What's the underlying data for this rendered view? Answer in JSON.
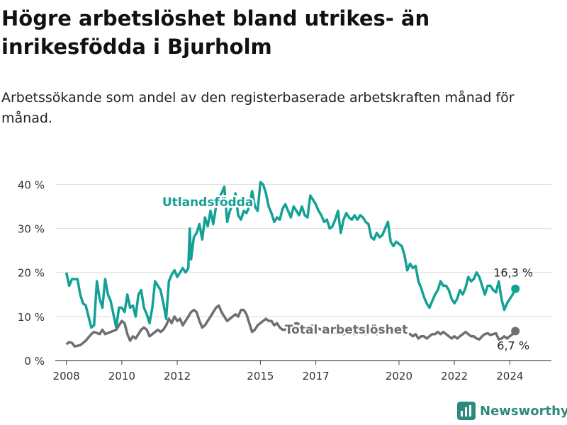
{
  "title": "Högre arbetslöshet bland utrikes- än inrikesfödda i Bjurholm",
  "subtitle": "Arbetssökande som andel av den registerbaserade arbetskraften månad för månad.",
  "brand": "Newsworthy",
  "chart_data": {
    "type": "line",
    "ylim": [
      0,
      42
    ],
    "y_ticks": [
      0,
      10,
      20,
      30,
      40
    ],
    "y_tick_labels": [
      "0 %",
      "10 %",
      "20 %",
      "30 %",
      "40 %"
    ],
    "xlim": [
      2007.6,
      2025.5
    ],
    "x_ticks": [
      2008,
      2010,
      2012,
      2015,
      2017,
      2020,
      2022,
      2024
    ],
    "x_tick_labels": [
      "2008",
      "2010",
      "2012",
      "2015",
      "2017",
      "2020",
      "2022",
      "2024"
    ],
    "grid": true,
    "series": [
      {
        "name": "Utlandsfödda",
        "color": "#13a196",
        "end_label": "16,3 %",
        "points": [
          [
            2008.0,
            20.0
          ],
          [
            2008.1,
            17.0
          ],
          [
            2008.2,
            18.5
          ],
          [
            2008.4,
            18.5
          ],
          [
            2008.5,
            15.0
          ],
          [
            2008.6,
            13.0
          ],
          [
            2008.7,
            12.5
          ],
          [
            2008.8,
            10.0
          ],
          [
            2008.9,
            7.5
          ],
          [
            2009.0,
            8.0
          ],
          [
            2009.1,
            18.0
          ],
          [
            2009.2,
            14.0
          ],
          [
            2009.3,
            12.0
          ],
          [
            2009.4,
            18.5
          ],
          [
            2009.5,
            15.0
          ],
          [
            2009.6,
            13.5
          ],
          [
            2009.7,
            10.5
          ],
          [
            2009.8,
            7.5
          ],
          [
            2009.9,
            12.0
          ],
          [
            2010.0,
            12.0
          ],
          [
            2010.1,
            11.0
          ],
          [
            2010.2,
            15.0
          ],
          [
            2010.3,
            12.0
          ],
          [
            2010.4,
            12.5
          ],
          [
            2010.5,
            10.0
          ],
          [
            2010.6,
            15.0
          ],
          [
            2010.7,
            16.0
          ],
          [
            2010.8,
            12.0
          ],
          [
            2010.9,
            10.5
          ],
          [
            2011.0,
            8.5
          ],
          [
            2011.1,
            12.0
          ],
          [
            2011.2,
            18.0
          ],
          [
            2011.3,
            17.0
          ],
          [
            2011.4,
            16.0
          ],
          [
            2011.5,
            13.0
          ],
          [
            2011.6,
            9.5
          ],
          [
            2011.7,
            18.0
          ],
          [
            2011.8,
            19.5
          ],
          [
            2011.9,
            20.5
          ],
          [
            2012.0,
            19.0
          ],
          [
            2012.1,
            20.0
          ],
          [
            2012.2,
            21.0
          ],
          [
            2012.3,
            20.0
          ],
          [
            2012.4,
            21.0
          ],
          [
            2012.45,
            30.0
          ],
          [
            2012.5,
            23.0
          ],
          [
            2012.6,
            28.0
          ],
          [
            2012.7,
            29.0
          ],
          [
            2012.8,
            31.0
          ],
          [
            2012.9,
            27.5
          ],
          [
            2013.0,
            32.5
          ],
          [
            2013.1,
            30.5
          ],
          [
            2013.2,
            34.0
          ],
          [
            2013.3,
            31.0
          ],
          [
            2013.4,
            35.0
          ],
          [
            2013.5,
            37.0
          ],
          [
            2013.6,
            38.0
          ],
          [
            2013.7,
            39.5
          ],
          [
            2013.8,
            31.5
          ],
          [
            2013.9,
            34.0
          ],
          [
            2014.0,
            35.5
          ],
          [
            2014.1,
            38.0
          ],
          [
            2014.2,
            33.0
          ],
          [
            2014.3,
            32.0
          ],
          [
            2014.4,
            34.0
          ],
          [
            2014.5,
            33.5
          ],
          [
            2014.6,
            35.0
          ],
          [
            2014.7,
            38.5
          ],
          [
            2014.8,
            35.0
          ],
          [
            2014.9,
            34.0
          ],
          [
            2015.0,
            40.5
          ],
          [
            2015.1,
            40.0
          ],
          [
            2015.2,
            38.0
          ],
          [
            2015.3,
            35.0
          ],
          [
            2015.4,
            33.5
          ],
          [
            2015.5,
            31.5
          ],
          [
            2015.6,
            32.5
          ],
          [
            2015.7,
            32.0
          ],
          [
            2015.8,
            34.5
          ],
          [
            2015.9,
            35.5
          ],
          [
            2016.0,
            34.0
          ],
          [
            2016.1,
            32.5
          ],
          [
            2016.2,
            35.0
          ],
          [
            2016.3,
            34.0
          ],
          [
            2016.4,
            33.0
          ],
          [
            2016.5,
            35.0
          ],
          [
            2016.6,
            33.0
          ],
          [
            2016.7,
            32.5
          ],
          [
            2016.8,
            37.5
          ],
          [
            2016.9,
            36.5
          ],
          [
            2017.0,
            35.5
          ],
          [
            2017.1,
            34.0
          ],
          [
            2017.2,
            33.0
          ],
          [
            2017.3,
            31.5
          ],
          [
            2017.4,
            32.0
          ],
          [
            2017.5,
            30.0
          ],
          [
            2017.6,
            30.5
          ],
          [
            2017.7,
            32.0
          ],
          [
            2017.8,
            34.0
          ],
          [
            2017.9,
            29.0
          ],
          [
            2018.0,
            32.0
          ],
          [
            2018.1,
            33.5
          ],
          [
            2018.2,
            32.5
          ],
          [
            2018.3,
            32.0
          ],
          [
            2018.4,
            33.0
          ],
          [
            2018.5,
            32.0
          ],
          [
            2018.6,
            33.0
          ],
          [
            2018.7,
            32.5
          ],
          [
            2018.8,
            31.5
          ],
          [
            2018.9,
            31.0
          ],
          [
            2019.0,
            28.0
          ],
          [
            2019.1,
            27.5
          ],
          [
            2019.2,
            29.0
          ],
          [
            2019.3,
            28.0
          ],
          [
            2019.4,
            28.5
          ],
          [
            2019.5,
            30.0
          ],
          [
            2019.6,
            31.5
          ],
          [
            2019.7,
            27.0
          ],
          [
            2019.8,
            26.0
          ],
          [
            2019.9,
            27.0
          ],
          [
            2020.0,
            26.5
          ],
          [
            2020.1,
            26.0
          ],
          [
            2020.2,
            24.0
          ],
          [
            2020.3,
            20.5
          ],
          [
            2020.4,
            22.0
          ],
          [
            2020.5,
            21.0
          ],
          [
            2020.6,
            21.5
          ],
          [
            2020.7,
            18.0
          ],
          [
            2020.8,
            16.5
          ],
          [
            2020.9,
            14.5
          ],
          [
            2021.0,
            13.0
          ],
          [
            2021.1,
            12.0
          ],
          [
            2021.2,
            13.5
          ],
          [
            2021.3,
            15.0
          ],
          [
            2021.4,
            16.0
          ],
          [
            2021.5,
            18.0
          ],
          [
            2021.6,
            17.0
          ],
          [
            2021.7,
            17.0
          ],
          [
            2021.8,
            16.0
          ],
          [
            2021.9,
            14.0
          ],
          [
            2022.0,
            13.0
          ],
          [
            2022.1,
            14.0
          ],
          [
            2022.2,
            16.0
          ],
          [
            2022.3,
            15.0
          ],
          [
            2022.4,
            16.5
          ],
          [
            2022.5,
            19.0
          ],
          [
            2022.6,
            18.0
          ],
          [
            2022.7,
            18.5
          ],
          [
            2022.8,
            20.0
          ],
          [
            2022.9,
            19.0
          ],
          [
            2023.0,
            17.0
          ],
          [
            2023.1,
            15.0
          ],
          [
            2023.2,
            17.0
          ],
          [
            2023.3,
            17.0
          ],
          [
            2023.4,
            16.0
          ],
          [
            2023.5,
            15.5
          ],
          [
            2023.6,
            18.0
          ],
          [
            2023.7,
            14.0
          ],
          [
            2023.8,
            11.5
          ],
          [
            2023.9,
            13.0
          ],
          [
            2024.0,
            14.0
          ],
          [
            2024.1,
            15.0
          ],
          [
            2024.2,
            16.3
          ]
        ]
      },
      {
        "name": "Total arbetslöshet",
        "color": "#6e6e73",
        "end_label": "6,7 %",
        "points": [
          [
            2008.0,
            3.7
          ],
          [
            2008.1,
            4.2
          ],
          [
            2008.2,
            4.0
          ],
          [
            2008.3,
            3.2
          ],
          [
            2008.5,
            3.5
          ],
          [
            2008.7,
            4.5
          ],
          [
            2008.9,
            6.0
          ],
          [
            2009.0,
            6.5
          ],
          [
            2009.2,
            6.0
          ],
          [
            2009.3,
            7.0
          ],
          [
            2009.4,
            6.0
          ],
          [
            2009.6,
            6.5
          ],
          [
            2009.8,
            7.0
          ],
          [
            2010.0,
            9.0
          ],
          [
            2010.1,
            8.5
          ],
          [
            2010.2,
            6.0
          ],
          [
            2010.3,
            4.5
          ],
          [
            2010.4,
            5.5
          ],
          [
            2010.5,
            5.0
          ],
          [
            2010.6,
            6.0
          ],
          [
            2010.7,
            7.0
          ],
          [
            2010.8,
            7.5
          ],
          [
            2010.9,
            7.0
          ],
          [
            2011.0,
            5.5
          ],
          [
            2011.1,
            6.0
          ],
          [
            2011.2,
            6.5
          ],
          [
            2011.3,
            7.0
          ],
          [
            2011.4,
            6.5
          ],
          [
            2011.5,
            7.0
          ],
          [
            2011.6,
            8.0
          ],
          [
            2011.7,
            9.5
          ],
          [
            2011.8,
            8.5
          ],
          [
            2011.9,
            10.0
          ],
          [
            2012.0,
            9.0
          ],
          [
            2012.1,
            9.5
          ],
          [
            2012.2,
            8.0
          ],
          [
            2012.3,
            9.0
          ],
          [
            2012.4,
            10.0
          ],
          [
            2012.5,
            11.0
          ],
          [
            2012.6,
            11.5
          ],
          [
            2012.7,
            11.0
          ],
          [
            2012.8,
            9.0
          ],
          [
            2012.9,
            7.5
          ],
          [
            2013.0,
            8.0
          ],
          [
            2013.1,
            9.0
          ],
          [
            2013.2,
            10.0
          ],
          [
            2013.3,
            11.0
          ],
          [
            2013.4,
            12.0
          ],
          [
            2013.5,
            12.5
          ],
          [
            2013.6,
            11.0
          ],
          [
            2013.7,
            10.0
          ],
          [
            2013.8,
            9.0
          ],
          [
            2013.9,
            9.5
          ],
          [
            2014.0,
            10.0
          ],
          [
            2014.1,
            10.5
          ],
          [
            2014.2,
            10.0
          ],
          [
            2014.3,
            11.5
          ],
          [
            2014.4,
            11.5
          ],
          [
            2014.5,
            10.5
          ],
          [
            2014.6,
            8.5
          ],
          [
            2014.7,
            6.5
          ],
          [
            2014.8,
            7.0
          ],
          [
            2014.9,
            8.0
          ],
          [
            2015.0,
            8.5
          ],
          [
            2015.1,
            9.0
          ],
          [
            2015.2,
            9.5
          ],
          [
            2015.3,
            9.0
          ],
          [
            2015.4,
            9.0
          ],
          [
            2015.5,
            8.0
          ],
          [
            2015.6,
            8.5
          ],
          [
            2015.7,
            7.5
          ],
          [
            2015.8,
            7.0
          ],
          [
            2015.9,
            7.0
          ],
          [
            2016.0,
            7.5
          ],
          [
            2016.1,
            8.0
          ],
          [
            2016.3,
            8.5
          ],
          [
            2016.5,
            8.0
          ],
          [
            2016.7,
            7.5
          ],
          [
            2016.9,
            8.0
          ],
          [
            2017.0,
            7.5
          ],
          [
            2017.2,
            7.0
          ],
          [
            2017.4,
            6.5
          ],
          [
            2017.6,
            6.0
          ],
          [
            2017.8,
            6.5
          ],
          [
            2018.0,
            6.0
          ],
          [
            2018.2,
            6.5
          ],
          [
            2018.4,
            6.0
          ],
          [
            2018.6,
            6.5
          ],
          [
            2018.8,
            6.0
          ],
          [
            2019.0,
            6.5
          ],
          [
            2019.2,
            6.0
          ],
          [
            2019.4,
            6.5
          ],
          [
            2019.6,
            6.0
          ],
          [
            2019.8,
            6.5
          ],
          [
            2020.0,
            7.0
          ],
          [
            2020.2,
            6.5
          ],
          [
            2020.4,
            6.0
          ],
          [
            2020.5,
            5.5
          ],
          [
            2020.6,
            6.0
          ],
          [
            2020.7,
            5.0
          ],
          [
            2020.8,
            5.5
          ],
          [
            2020.9,
            5.5
          ],
          [
            2021.0,
            5.0
          ],
          [
            2021.1,
            5.5
          ],
          [
            2021.2,
            6.0
          ],
          [
            2021.3,
            6.0
          ],
          [
            2021.4,
            6.5
          ],
          [
            2021.5,
            6.0
          ],
          [
            2021.6,
            6.5
          ],
          [
            2021.7,
            6.0
          ],
          [
            2021.8,
            5.5
          ],
          [
            2021.9,
            5.0
          ],
          [
            2022.0,
            5.5
          ],
          [
            2022.1,
            5.0
          ],
          [
            2022.2,
            5.5
          ],
          [
            2022.3,
            6.0
          ],
          [
            2022.4,
            6.5
          ],
          [
            2022.5,
            6.0
          ],
          [
            2022.6,
            5.5
          ],
          [
            2022.7,
            5.5
          ],
          [
            2022.8,
            5.0
          ],
          [
            2022.9,
            4.8
          ],
          [
            2023.0,
            5.5
          ],
          [
            2023.1,
            6.0
          ],
          [
            2023.2,
            6.2
          ],
          [
            2023.3,
            5.8
          ],
          [
            2023.4,
            6.0
          ],
          [
            2023.5,
            6.2
          ],
          [
            2023.6,
            4.8
          ],
          [
            2023.7,
            5.0
          ],
          [
            2023.8,
            5.5
          ],
          [
            2023.9,
            5.0
          ],
          [
            2024.0,
            5.5
          ],
          [
            2024.1,
            6.0
          ],
          [
            2024.2,
            6.7
          ]
        ]
      }
    ]
  }
}
